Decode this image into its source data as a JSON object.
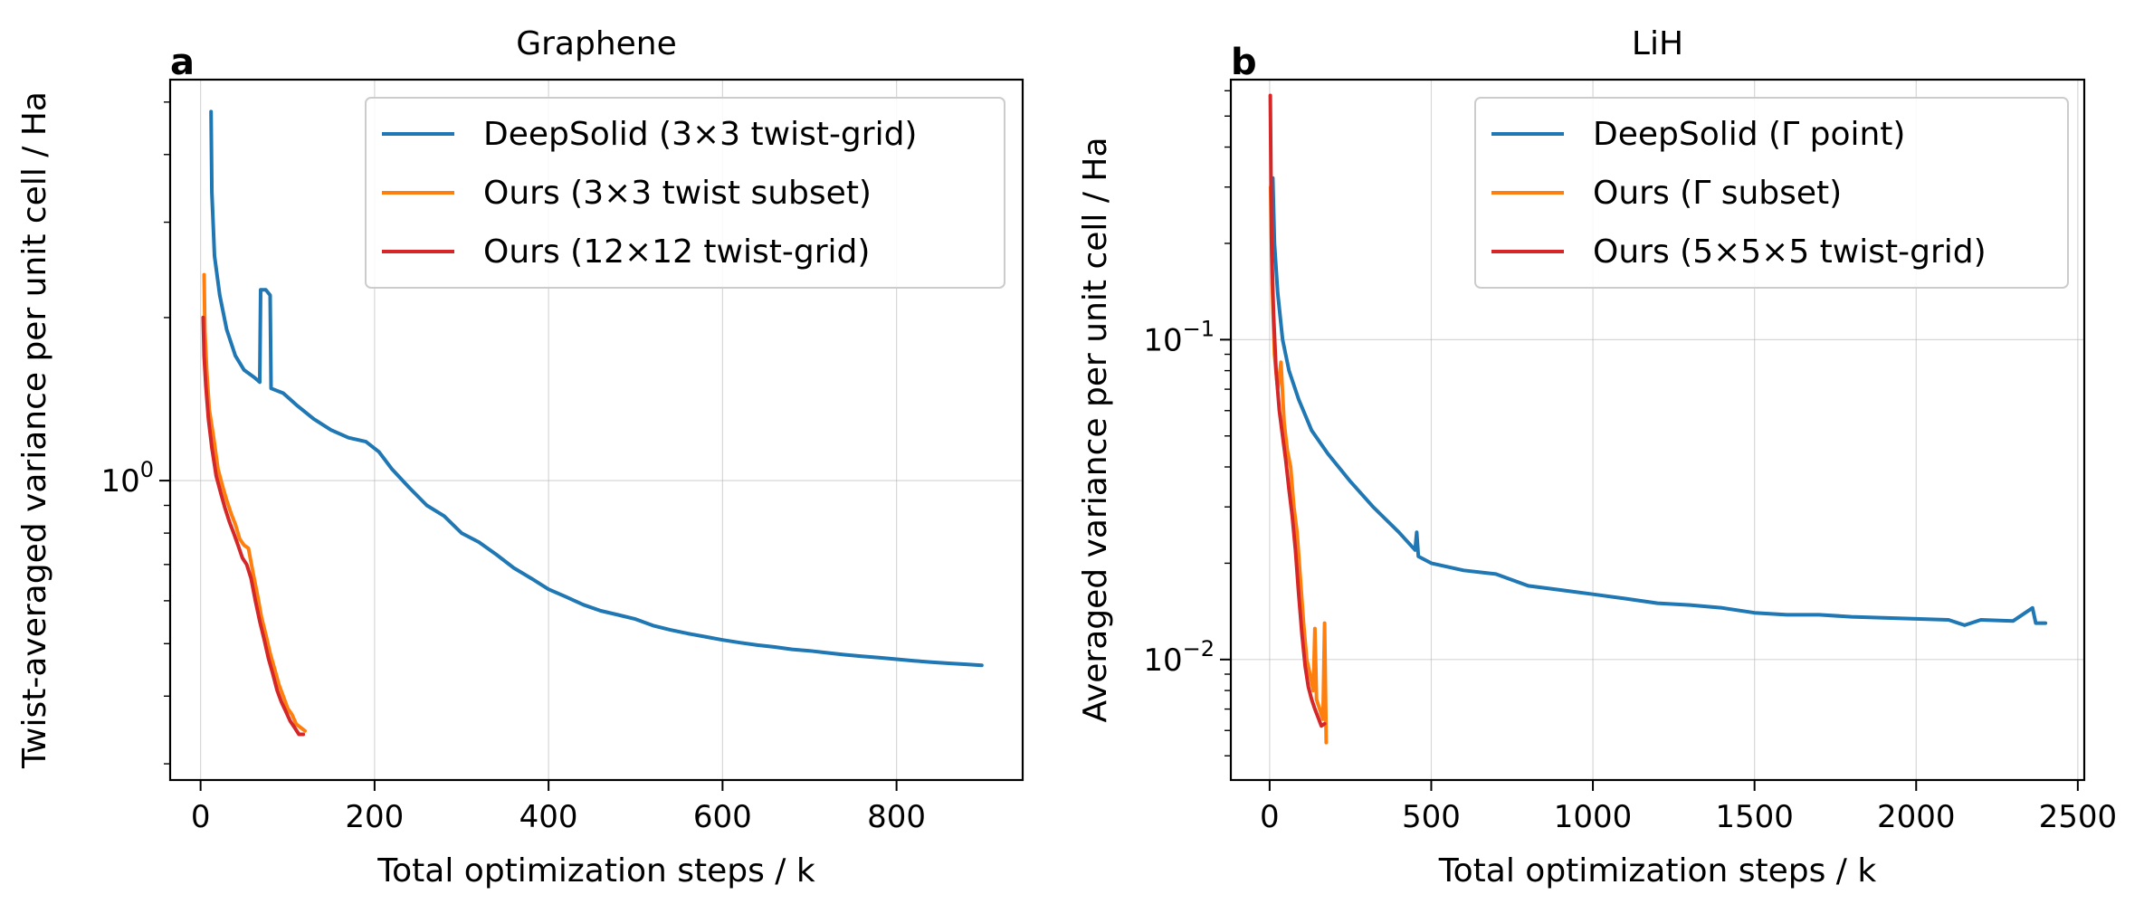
{
  "chart_data": [
    {
      "type": "line",
      "panel_letter": "a",
      "title": "Graphene",
      "xlabel": "Total optimization steps / k",
      "ylabel": "Twist-averaged variance per unit cell / Ha",
      "xlim": [
        -35,
        945
      ],
      "ylim": [
        0.28,
        5.5
      ],
      "yscale": "log",
      "xticks": [
        0,
        200,
        400,
        600,
        800
      ],
      "xtick_labels": [
        "0",
        "200",
        "400",
        "600",
        "800"
      ],
      "yticks_major": [
        1
      ],
      "ytick_major_labels": [
        "10",
        "0"
      ],
      "yticks_minor": [
        0.3,
        0.4,
        0.5,
        0.6,
        0.7,
        0.8,
        0.9,
        2,
        3,
        4,
        5
      ],
      "grid": true,
      "legend_position": "top-right",
      "series": [
        {
          "name": "DeepSolid (3×3 twist-grid)",
          "color": "#1f77b4",
          "points": [
            [
              12,
              4.8
            ],
            [
              13,
              3.4
            ],
            [
              16,
              2.6
            ],
            [
              22,
              2.2
            ],
            [
              30,
              1.9
            ],
            [
              40,
              1.7
            ],
            [
              50,
              1.6
            ],
            [
              62,
              1.55
            ],
            [
              68,
              1.52
            ],
            [
              69,
              2.25
            ],
            [
              75,
              2.25
            ],
            [
              80,
              2.2
            ],
            [
              81,
              1.48
            ],
            [
              95,
              1.45
            ],
            [
              110,
              1.38
            ],
            [
              130,
              1.3
            ],
            [
              150,
              1.24
            ],
            [
              170,
              1.2
            ],
            [
              190,
              1.18
            ],
            [
              205,
              1.13
            ],
            [
              220,
              1.05
            ],
            [
              240,
              0.97
            ],
            [
              260,
              0.9
            ],
            [
              280,
              0.86
            ],
            [
              300,
              0.8
            ],
            [
              320,
              0.77
            ],
            [
              340,
              0.73
            ],
            [
              360,
              0.69
            ],
            [
              380,
              0.66
            ],
            [
              400,
              0.63
            ],
            [
              420,
              0.61
            ],
            [
              440,
              0.59
            ],
            [
              460,
              0.575
            ],
            [
              480,
              0.565
            ],
            [
              500,
              0.555
            ],
            [
              520,
              0.54
            ],
            [
              540,
              0.53
            ],
            [
              560,
              0.522
            ],
            [
              580,
              0.515
            ],
            [
              600,
              0.508
            ],
            [
              620,
              0.502
            ],
            [
              640,
              0.497
            ],
            [
              660,
              0.493
            ],
            [
              680,
              0.488
            ],
            [
              700,
              0.485
            ],
            [
              720,
              0.481
            ],
            [
              740,
              0.477
            ],
            [
              760,
              0.474
            ],
            [
              780,
              0.471
            ],
            [
              800,
              0.468
            ],
            [
              820,
              0.465
            ],
            [
              840,
              0.462
            ],
            [
              860,
              0.46
            ],
            [
              880,
              0.458
            ],
            [
              898,
              0.456
            ]
          ]
        },
        {
          "name": "Ours (3×3 twist subset)",
          "color": "#ff7f0e",
          "points": [
            [
              4,
              2.4
            ],
            [
              5,
              1.9
            ],
            [
              7,
              1.6
            ],
            [
              10,
              1.35
            ],
            [
              15,
              1.2
            ],
            [
              20,
              1.05
            ],
            [
              25,
              0.98
            ],
            [
              30,
              0.92
            ],
            [
              35,
              0.87
            ],
            [
              40,
              0.83
            ],
            [
              45,
              0.78
            ],
            [
              50,
              0.76
            ],
            [
              55,
              0.75
            ],
            [
              60,
              0.68
            ],
            [
              65,
              0.62
            ],
            [
              70,
              0.56
            ],
            [
              75,
              0.52
            ],
            [
              80,
              0.48
            ],
            [
              85,
              0.45
            ],
            [
              90,
              0.42
            ],
            [
              95,
              0.4
            ],
            [
              100,
              0.38
            ],
            [
              105,
              0.37
            ],
            [
              110,
              0.355
            ],
            [
              115,
              0.35
            ],
            [
              120,
              0.345
            ]
          ]
        },
        {
          "name": "Ours (12×12 twist-grid)",
          "color": "#d62728",
          "points": [
            [
              3,
              2.0
            ],
            [
              4,
              1.7
            ],
            [
              6,
              1.5
            ],
            [
              9,
              1.3
            ],
            [
              13,
              1.15
            ],
            [
              18,
              1.02
            ],
            [
              23,
              0.95
            ],
            [
              28,
              0.89
            ],
            [
              33,
              0.84
            ],
            [
              38,
              0.8
            ],
            [
              43,
              0.76
            ],
            [
              48,
              0.72
            ],
            [
              53,
              0.7
            ],
            [
              58,
              0.66
            ],
            [
              63,
              0.6
            ],
            [
              68,
              0.55
            ],
            [
              73,
              0.51
            ],
            [
              78,
              0.47
            ],
            [
              83,
              0.44
            ],
            [
              88,
              0.41
            ],
            [
              93,
              0.39
            ],
            [
              98,
              0.375
            ],
            [
              103,
              0.36
            ],
            [
              108,
              0.35
            ],
            [
              113,
              0.34
            ],
            [
              118,
              0.34
            ]
          ]
        }
      ]
    },
    {
      "type": "line",
      "panel_letter": "b",
      "title": "LiH",
      "xlabel": "Total optimization steps / k",
      "ylabel": "Averaged variance per unit cell / Ha",
      "xlim": [
        -120,
        2520
      ],
      "ylim": [
        0.0042,
        0.65
      ],
      "yscale": "log",
      "xticks": [
        0,
        500,
        1000,
        1500,
        2000,
        2500
      ],
      "xtick_labels": [
        "0",
        "500",
        "1000",
        "1500",
        "2000",
        "2500"
      ],
      "yticks_major": [
        0.01,
        0.1
      ],
      "ytick_major_labels": [
        "10",
        "−2",
        "10",
        "−1"
      ],
      "yticks_minor": [
        0.005,
        0.006,
        0.007,
        0.008,
        0.009,
        0.02,
        0.03,
        0.04,
        0.05,
        0.06,
        0.07,
        0.08,
        0.09,
        0.2,
        0.3,
        0.4,
        0.5,
        0.6
      ],
      "grid": true,
      "legend_position": "top-right",
      "series": [
        {
          "name": "DeepSolid (Γ point)",
          "color": "#1f77b4",
          "points": [
            [
              10,
              0.32
            ],
            [
              15,
              0.2
            ],
            [
              25,
              0.14
            ],
            [
              40,
              0.1
            ],
            [
              60,
              0.08
            ],
            [
              90,
              0.065
            ],
            [
              130,
              0.052
            ],
            [
              180,
              0.044
            ],
            [
              250,
              0.036
            ],
            [
              320,
              0.03
            ],
            [
              400,
              0.025
            ],
            [
              450,
              0.022
            ],
            [
              455,
              0.025
            ],
            [
              460,
              0.021
            ],
            [
              500,
              0.02
            ],
            [
              600,
              0.019
            ],
            [
              700,
              0.0185
            ],
            [
              800,
              0.017
            ],
            [
              900,
              0.0165
            ],
            [
              1000,
              0.016
            ],
            [
              1100,
              0.0155
            ],
            [
              1200,
              0.015
            ],
            [
              1300,
              0.0148
            ],
            [
              1400,
              0.0145
            ],
            [
              1500,
              0.014
            ],
            [
              1600,
              0.0138
            ],
            [
              1700,
              0.0138
            ],
            [
              1800,
              0.0136
            ],
            [
              1900,
              0.0135
            ],
            [
              2000,
              0.0134
            ],
            [
              2100,
              0.0133
            ],
            [
              2150,
              0.0128
            ],
            [
              2200,
              0.0133
            ],
            [
              2300,
              0.0132
            ],
            [
              2360,
              0.0145
            ],
            [
              2370,
              0.013
            ],
            [
              2400,
              0.013
            ]
          ]
        },
        {
          "name": "Ours (Γ subset)",
          "color": "#ff7f0e",
          "points": [
            [
              3,
              0.3
            ],
            [
              8,
              0.15
            ],
            [
              15,
              0.09
            ],
            [
              25,
              0.07
            ],
            [
              35,
              0.085
            ],
            [
              45,
              0.055
            ],
            [
              55,
              0.045
            ],
            [
              65,
              0.04
            ],
            [
              75,
              0.03
            ],
            [
              85,
              0.025
            ],
            [
              95,
              0.018
            ],
            [
              105,
              0.013
            ],
            [
              115,
              0.01
            ],
            [
              125,
              0.009
            ],
            [
              135,
              0.008
            ],
            [
              140,
              0.0125
            ],
            [
              145,
              0.0075
            ],
            [
              155,
              0.007
            ],
            [
              165,
              0.0065
            ],
            [
              170,
              0.013
            ],
            [
              175,
              0.0055
            ]
          ]
        },
        {
          "name": "Ours (5×5×5 twist-grid)",
          "color": "#d62728",
          "points": [
            [
              2,
              0.58
            ],
            [
              6,
              0.2
            ],
            [
              12,
              0.12
            ],
            [
              20,
              0.08
            ],
            [
              30,
              0.06
            ],
            [
              40,
              0.05
            ],
            [
              50,
              0.042
            ],
            [
              60,
              0.034
            ],
            [
              70,
              0.028
            ],
            [
              80,
              0.022
            ],
            [
              90,
              0.016
            ],
            [
              100,
              0.012
            ],
            [
              110,
              0.0095
            ],
            [
              120,
              0.0082
            ],
            [
              130,
              0.0075
            ],
            [
              140,
              0.007
            ],
            [
              150,
              0.0066
            ],
            [
              160,
              0.0062
            ],
            [
              170,
              0.0063
            ]
          ]
        }
      ]
    }
  ]
}
